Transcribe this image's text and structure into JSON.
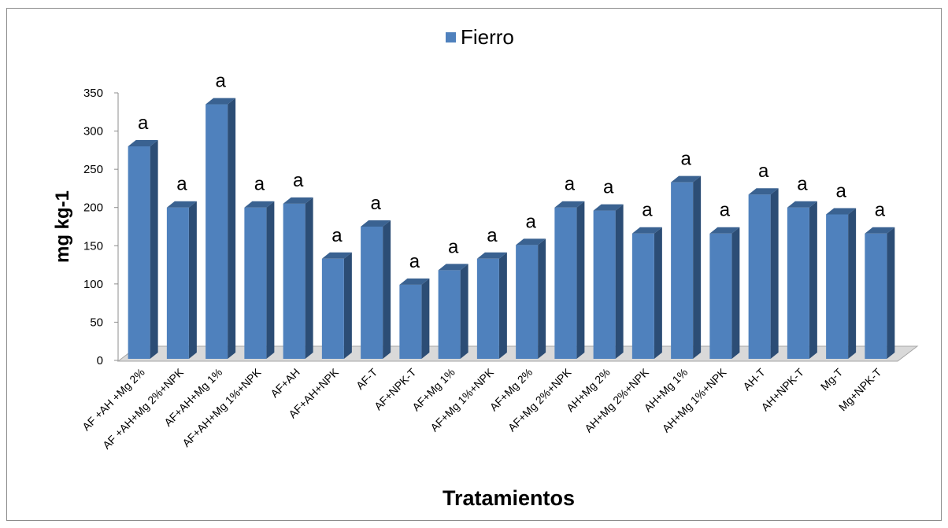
{
  "chart_data": {
    "type": "bar",
    "legend_position": "top",
    "grid": false,
    "xlabel": "Tratamientos",
    "ylabel": "mg kg-1",
    "ylim": [
      0,
      350
    ],
    "y_ticks": [
      0,
      50,
      100,
      150,
      200,
      250,
      300,
      350
    ],
    "series": [
      {
        "name": "Fierro",
        "color": "#4f81bd",
        "values": [
          280,
          200,
          335,
          200,
          205,
          133,
          175,
          99,
          118,
          133,
          151,
          200,
          196,
          166,
          233,
          166,
          217,
          200,
          191,
          166
        ]
      }
    ],
    "categories": [
      "AF +AH +Mg 2%",
      "AF +AH+Mg 2%+NPK",
      "AF+AH+Mg 1%",
      "AF+AH+Mg 1%+NPK",
      "AF+AH",
      "AF+AH+NPK",
      "AF-T",
      "AF+NPK-T",
      "AF+Mg 1%",
      "AF+Mg 1%+NPK",
      "AF+Mg 2%",
      "AF+Mg 2%+NPK",
      "AH+Mg 2%",
      "AH+Mg 2%+NPK",
      "AH+Mg 1%",
      "AH+Mg 1%+NPK",
      "AH-T",
      "AH+NPK-T",
      "Mg-T",
      "Mg+NPK-T"
    ],
    "data_labels": [
      "a",
      "a",
      "a",
      "a",
      "a",
      "a",
      "a",
      "a",
      "a",
      "a",
      "a",
      "a",
      "a",
      "a",
      "a",
      "a",
      "a",
      "a",
      "a",
      "a"
    ]
  }
}
